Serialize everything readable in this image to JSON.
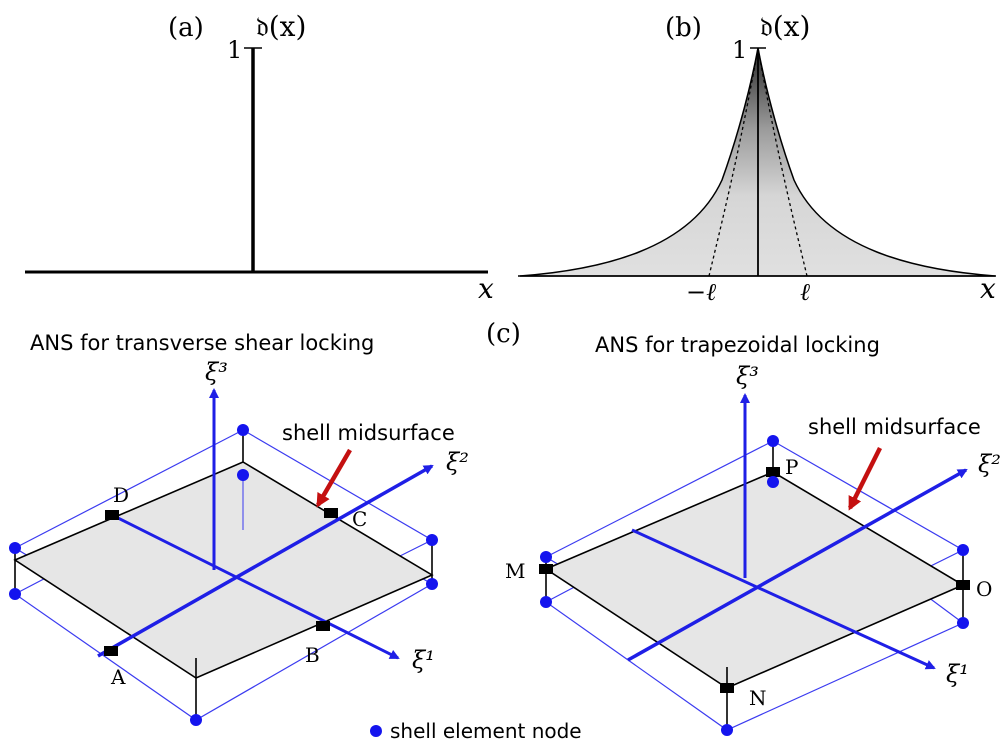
{
  "panels": {
    "a": {
      "label": "(a)",
      "func_label": "𝔡(x)",
      "y_tick": "1",
      "x_axis": "x"
    },
    "b": {
      "label": "(b)",
      "func_label": "𝔡(x)",
      "y_tick": "1",
      "x_axis": "x",
      "neg_ell": "−ℓ",
      "pos_ell": "ℓ"
    },
    "c": {
      "label": "(c)"
    }
  },
  "left_diagram": {
    "title": "ANS for transverse shear locking",
    "midsurface_label": "shell midsurface",
    "xi1": "ξ¹",
    "xi2": "ξ²",
    "xi3": "ξ³",
    "points": {
      "A": "A",
      "B": "B",
      "C": "C",
      "D": "D"
    }
  },
  "right_diagram": {
    "title": "ANS for trapezoidal locking",
    "midsurface_label": "shell midsurface",
    "xi1": "ξ¹",
    "xi2": "ξ²",
    "xi3": "ξ³",
    "points": {
      "M": "M",
      "N": "N",
      "O": "O",
      "P": "P"
    }
  },
  "legend": {
    "node_label": "shell element node"
  },
  "colors": {
    "axis_blue": "#1f1fe6",
    "node_blue": "#1414ee",
    "arrow_red": "#c41010",
    "plane_gray": "#e8e8e8"
  }
}
